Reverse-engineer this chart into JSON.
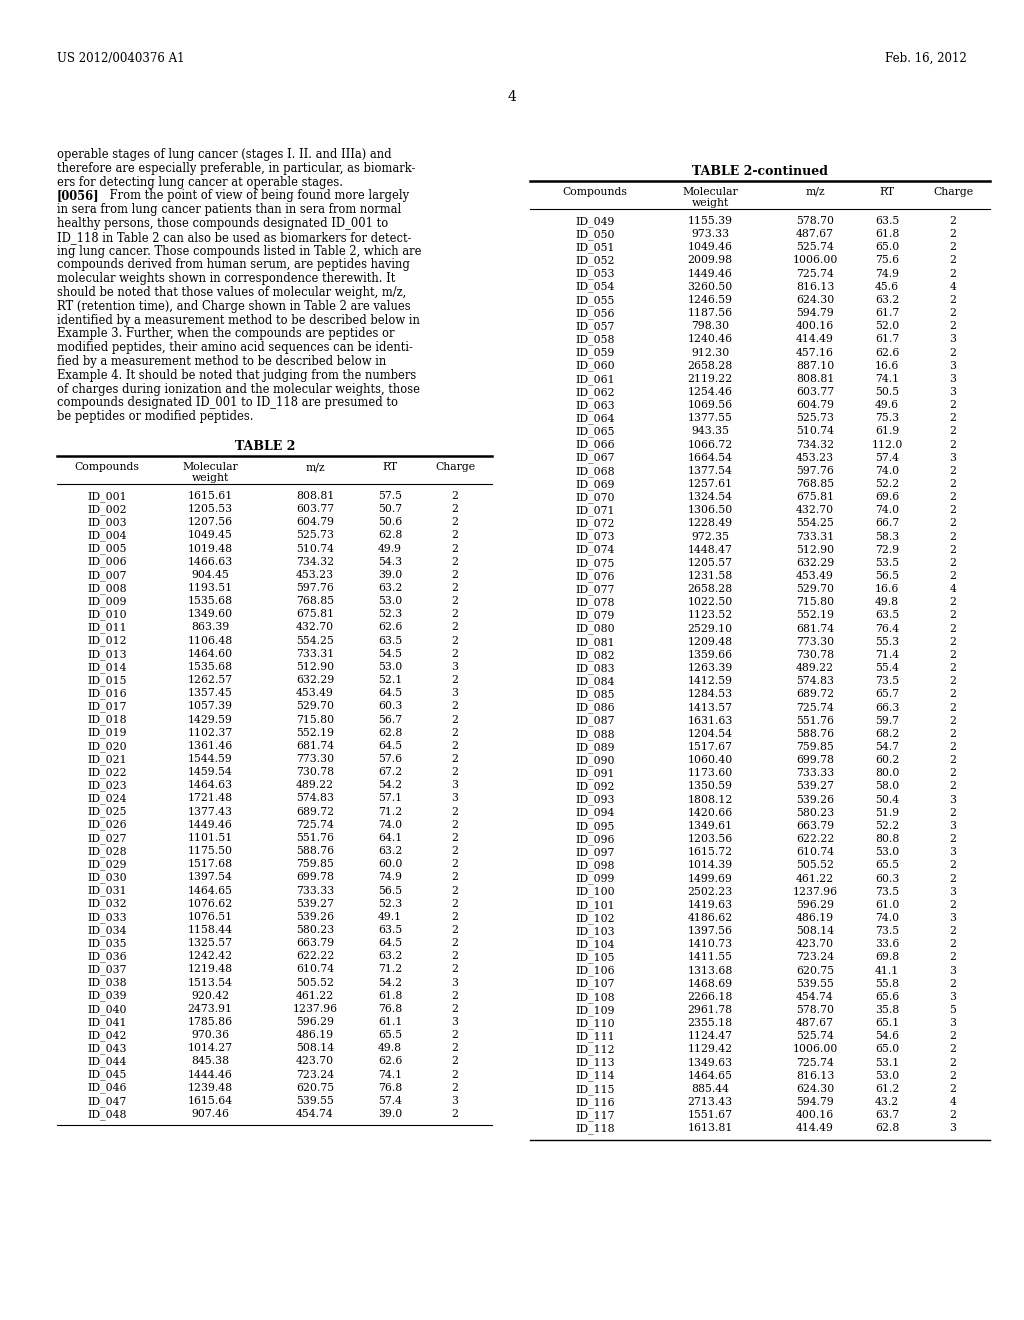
{
  "header_left": "US 2012/0040376 A1",
  "header_right": "Feb. 16, 2012",
  "page_number": "4",
  "table2_title": "TABLE 2",
  "table2_continued_title": "TABLE 2-continued",
  "table2_data": [
    [
      "ID_001",
      "1615.61",
      "808.81",
      "57.5",
      "2"
    ],
    [
      "ID_002",
      "1205.53",
      "603.77",
      "50.7",
      "2"
    ],
    [
      "ID_003",
      "1207.56",
      "604.79",
      "50.6",
      "2"
    ],
    [
      "ID_004",
      "1049.45",
      "525.73",
      "62.8",
      "2"
    ],
    [
      "ID_005",
      "1019.48",
      "510.74",
      "49.9",
      "2"
    ],
    [
      "ID_006",
      "1466.63",
      "734.32",
      "54.3",
      "2"
    ],
    [
      "ID_007",
      "904.45",
      "453.23",
      "39.0",
      "2"
    ],
    [
      "ID_008",
      "1193.51",
      "597.76",
      "63.2",
      "2"
    ],
    [
      "ID_009",
      "1535.68",
      "768.85",
      "53.0",
      "2"
    ],
    [
      "ID_010",
      "1349.60",
      "675.81",
      "52.3",
      "2"
    ],
    [
      "ID_011",
      "863.39",
      "432.70",
      "62.6",
      "2"
    ],
    [
      "ID_012",
      "1106.48",
      "554.25",
      "63.5",
      "2"
    ],
    [
      "ID_013",
      "1464.60",
      "733.31",
      "54.5",
      "2"
    ],
    [
      "ID_014",
      "1535.68",
      "512.90",
      "53.0",
      "3"
    ],
    [
      "ID_015",
      "1262.57",
      "632.29",
      "52.1",
      "2"
    ],
    [
      "ID_016",
      "1357.45",
      "453.49",
      "64.5",
      "3"
    ],
    [
      "ID_017",
      "1057.39",
      "529.70",
      "60.3",
      "2"
    ],
    [
      "ID_018",
      "1429.59",
      "715.80",
      "56.7",
      "2"
    ],
    [
      "ID_019",
      "1102.37",
      "552.19",
      "62.8",
      "2"
    ],
    [
      "ID_020",
      "1361.46",
      "681.74",
      "64.5",
      "2"
    ],
    [
      "ID_021",
      "1544.59",
      "773.30",
      "57.6",
      "2"
    ],
    [
      "ID_022",
      "1459.54",
      "730.78",
      "67.2",
      "2"
    ],
    [
      "ID_023",
      "1464.63",
      "489.22",
      "54.2",
      "3"
    ],
    [
      "ID_024",
      "1721.48",
      "574.83",
      "57.1",
      "3"
    ],
    [
      "ID_025",
      "1377.43",
      "689.72",
      "71.2",
      "2"
    ],
    [
      "ID_026",
      "1449.46",
      "725.74",
      "74.0",
      "2"
    ],
    [
      "ID_027",
      "1101.51",
      "551.76",
      "64.1",
      "2"
    ],
    [
      "ID_028",
      "1175.50",
      "588.76",
      "63.2",
      "2"
    ],
    [
      "ID_029",
      "1517.68",
      "759.85",
      "60.0",
      "2"
    ],
    [
      "ID_030",
      "1397.54",
      "699.78",
      "74.9",
      "2"
    ],
    [
      "ID_031",
      "1464.65",
      "733.33",
      "56.5",
      "2"
    ],
    [
      "ID_032",
      "1076.62",
      "539.27",
      "52.3",
      "2"
    ],
    [
      "ID_033",
      "1076.51",
      "539.26",
      "49.1",
      "2"
    ],
    [
      "ID_034",
      "1158.44",
      "580.23",
      "63.5",
      "2"
    ],
    [
      "ID_035",
      "1325.57",
      "663.79",
      "64.5",
      "2"
    ],
    [
      "ID_036",
      "1242.42",
      "622.22",
      "63.2",
      "2"
    ],
    [
      "ID_037",
      "1219.48",
      "610.74",
      "71.2",
      "2"
    ],
    [
      "ID_038",
      "1513.54",
      "505.52",
      "54.2",
      "3"
    ],
    [
      "ID_039",
      "920.42",
      "461.22",
      "61.8",
      "2"
    ],
    [
      "ID_040",
      "2473.91",
      "1237.96",
      "76.8",
      "2"
    ],
    [
      "ID_041",
      "1785.86",
      "596.29",
      "61.1",
      "3"
    ],
    [
      "ID_042",
      "970.36",
      "486.19",
      "65.5",
      "2"
    ],
    [
      "ID_043",
      "1014.27",
      "508.14",
      "49.8",
      "2"
    ],
    [
      "ID_044",
      "845.38",
      "423.70",
      "62.6",
      "2"
    ],
    [
      "ID_045",
      "1444.46",
      "723.24",
      "74.1",
      "2"
    ],
    [
      "ID_046",
      "1239.48",
      "620.75",
      "76.8",
      "2"
    ],
    [
      "ID_047",
      "1615.64",
      "539.55",
      "57.4",
      "3"
    ],
    [
      "ID_048",
      "907.46",
      "454.74",
      "39.0",
      "2"
    ]
  ],
  "table2_continued_data": [
    [
      "ID_049",
      "1155.39",
      "578.70",
      "63.5",
      "2"
    ],
    [
      "ID_050",
      "973.33",
      "487.67",
      "61.8",
      "2"
    ],
    [
      "ID_051",
      "1049.46",
      "525.74",
      "65.0",
      "2"
    ],
    [
      "ID_052",
      "2009.98",
      "1006.00",
      "75.6",
      "2"
    ],
    [
      "ID_053",
      "1449.46",
      "725.74",
      "74.9",
      "2"
    ],
    [
      "ID_054",
      "3260.50",
      "816.13",
      "45.6",
      "4"
    ],
    [
      "ID_055",
      "1246.59",
      "624.30",
      "63.2",
      "2"
    ],
    [
      "ID_056",
      "1187.56",
      "594.79",
      "61.7",
      "2"
    ],
    [
      "ID_057",
      "798.30",
      "400.16",
      "52.0",
      "2"
    ],
    [
      "ID_058",
      "1240.46",
      "414.49",
      "61.7",
      "3"
    ],
    [
      "ID_059",
      "912.30",
      "457.16",
      "62.6",
      "2"
    ],
    [
      "ID_060",
      "2658.28",
      "887.10",
      "16.6",
      "3"
    ],
    [
      "ID_061",
      "2119.22",
      "808.81",
      "74.1",
      "3"
    ],
    [
      "ID_062",
      "1254.46",
      "603.77",
      "50.5",
      "3"
    ],
    [
      "ID_063",
      "1069.56",
      "604.79",
      "49.6",
      "2"
    ],
    [
      "ID_064",
      "1377.55",
      "525.73",
      "75.3",
      "2"
    ],
    [
      "ID_065",
      "943.35",
      "510.74",
      "61.9",
      "2"
    ],
    [
      "ID_066",
      "1066.72",
      "734.32",
      "112.0",
      "2"
    ],
    [
      "ID_067",
      "1664.54",
      "453.23",
      "57.4",
      "3"
    ],
    [
      "ID_068",
      "1377.54",
      "597.76",
      "74.0",
      "2"
    ],
    [
      "ID_069",
      "1257.61",
      "768.85",
      "52.2",
      "2"
    ],
    [
      "ID_070",
      "1324.54",
      "675.81",
      "69.6",
      "2"
    ],
    [
      "ID_071",
      "1306.50",
      "432.70",
      "74.0",
      "2"
    ],
    [
      "ID_072",
      "1228.49",
      "554.25",
      "66.7",
      "2"
    ],
    [
      "ID_073",
      "972.35",
      "733.31",
      "58.3",
      "2"
    ],
    [
      "ID_074",
      "1448.47",
      "512.90",
      "72.9",
      "2"
    ],
    [
      "ID_075",
      "1205.57",
      "632.29",
      "53.5",
      "2"
    ],
    [
      "ID_076",
      "1231.58",
      "453.49",
      "56.5",
      "2"
    ],
    [
      "ID_077",
      "2658.28",
      "529.70",
      "16.6",
      "4"
    ],
    [
      "ID_078",
      "1022.50",
      "715.80",
      "49.8",
      "2"
    ],
    [
      "ID_079",
      "1123.52",
      "552.19",
      "63.5",
      "2"
    ],
    [
      "ID_080",
      "2529.10",
      "681.74",
      "76.4",
      "2"
    ],
    [
      "ID_081",
      "1209.48",
      "773.30",
      "55.3",
      "2"
    ],
    [
      "ID_082",
      "1359.66",
      "730.78",
      "71.4",
      "2"
    ],
    [
      "ID_083",
      "1263.39",
      "489.22",
      "55.4",
      "2"
    ],
    [
      "ID_084",
      "1412.59",
      "574.83",
      "73.5",
      "2"
    ],
    [
      "ID_085",
      "1284.53",
      "689.72",
      "65.7",
      "2"
    ],
    [
      "ID_086",
      "1413.57",
      "725.74",
      "66.3",
      "2"
    ],
    [
      "ID_087",
      "1631.63",
      "551.76",
      "59.7",
      "2"
    ],
    [
      "ID_088",
      "1204.54",
      "588.76",
      "68.2",
      "2"
    ],
    [
      "ID_089",
      "1517.67",
      "759.85",
      "54.7",
      "2"
    ],
    [
      "ID_090",
      "1060.40",
      "699.78",
      "60.2",
      "2"
    ],
    [
      "ID_091",
      "1173.60",
      "733.33",
      "80.0",
      "2"
    ],
    [
      "ID_092",
      "1350.59",
      "539.27",
      "58.0",
      "2"
    ],
    [
      "ID_093",
      "1808.12",
      "539.26",
      "50.4",
      "3"
    ],
    [
      "ID_094",
      "1420.66",
      "580.23",
      "51.9",
      "2"
    ],
    [
      "ID_095",
      "1349.61",
      "663.79",
      "52.2",
      "3"
    ],
    [
      "ID_096",
      "1203.56",
      "622.22",
      "80.8",
      "2"
    ],
    [
      "ID_097",
      "1615.72",
      "610.74",
      "53.0",
      "3"
    ],
    [
      "ID_098",
      "1014.39",
      "505.52",
      "65.5",
      "2"
    ],
    [
      "ID_099",
      "1499.69",
      "461.22",
      "60.3",
      "2"
    ],
    [
      "ID_100",
      "2502.23",
      "1237.96",
      "73.5",
      "3"
    ],
    [
      "ID_101",
      "1419.63",
      "596.29",
      "61.0",
      "2"
    ],
    [
      "ID_102",
      "4186.62",
      "486.19",
      "74.0",
      "3"
    ],
    [
      "ID_103",
      "1397.56",
      "508.14",
      "73.5",
      "2"
    ],
    [
      "ID_104",
      "1410.73",
      "423.70",
      "33.6",
      "2"
    ],
    [
      "ID_105",
      "1411.55",
      "723.24",
      "69.8",
      "2"
    ],
    [
      "ID_106",
      "1313.68",
      "620.75",
      "41.1",
      "3"
    ],
    [
      "ID_107",
      "1468.69",
      "539.55",
      "55.8",
      "2"
    ],
    [
      "ID_108",
      "2266.18",
      "454.74",
      "65.6",
      "3"
    ],
    [
      "ID_109",
      "2961.78",
      "578.70",
      "35.8",
      "5"
    ],
    [
      "ID_110",
      "2355.18",
      "487.67",
      "65.1",
      "3"
    ],
    [
      "ID_111",
      "1124.47",
      "525.74",
      "54.6",
      "2"
    ],
    [
      "ID_112",
      "1129.42",
      "1006.00",
      "65.0",
      "2"
    ],
    [
      "ID_113",
      "1349.63",
      "725.74",
      "53.1",
      "2"
    ],
    [
      "ID_114",
      "1464.65",
      "816.13",
      "53.0",
      "2"
    ],
    [
      "ID_115",
      "885.44",
      "624.30",
      "61.2",
      "2"
    ],
    [
      "ID_116",
      "2713.43",
      "594.79",
      "43.2",
      "4"
    ],
    [
      "ID_117",
      "1551.67",
      "400.16",
      "63.7",
      "2"
    ],
    [
      "ID_118",
      "1613.81",
      "414.49",
      "62.8",
      "3"
    ]
  ]
}
